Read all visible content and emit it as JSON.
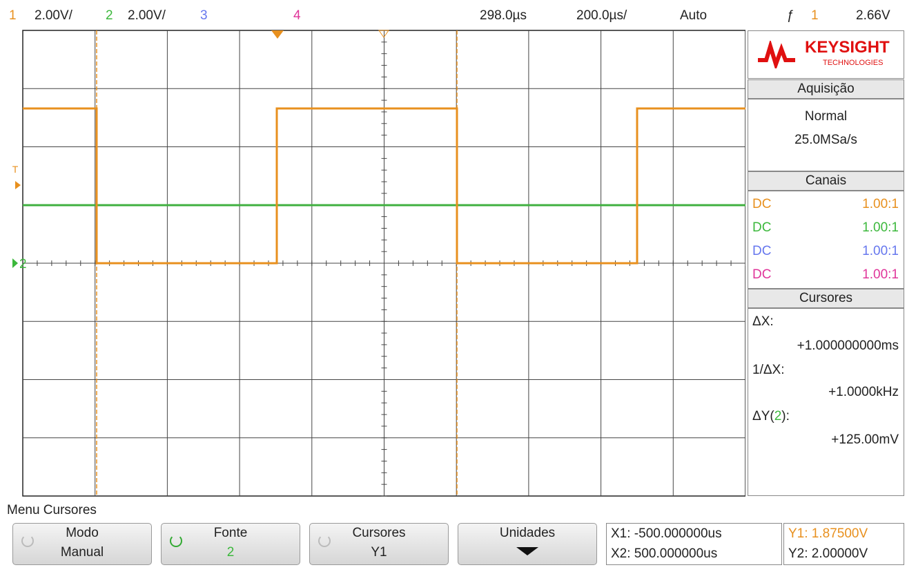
{
  "header": {
    "ch1_label": "1",
    "ch1_scale": "2.00V/",
    "ch2_label": "2",
    "ch2_scale": "2.00V/",
    "ch3_label": "3",
    "ch4_label": "4",
    "delay": "298.0µs",
    "timebase": "200.0µs/",
    "trigger_mode": "Auto",
    "trigger_channel": "1",
    "trigger_level": "2.66V"
  },
  "screen": {
    "trigger_marker": "T",
    "ground_marker": "2"
  },
  "panel": {
    "brand": "KEYSIGHT",
    "brand_sub": "TECHNOLOGIES",
    "acquisition": {
      "title": "Aquisição",
      "mode": "Normal",
      "rate": "25.0MSa/s"
    },
    "channels": {
      "title": "Canais",
      "rows": [
        [
          "DC",
          "1.00:1"
        ],
        [
          "DC",
          "1.00:1"
        ],
        [
          "DC",
          "1.00:1"
        ],
        [
          "DC",
          "1.00:1"
        ]
      ]
    },
    "cursors": {
      "title": "Cursores",
      "dx_label": "ΔX:",
      "dx_value": "+1.000000000ms",
      "inv_label": "1/ΔX:",
      "inv_value": "+1.0000kHz",
      "dy_open": "ΔY(",
      "dy_channel": "2",
      "dy_close": "):",
      "dy_value": "+125.00mV"
    }
  },
  "menu": {
    "title": "Menu Cursores",
    "buttons": [
      {
        "label": "Modo",
        "value": "Manual"
      },
      {
        "label": "Fonte",
        "value": "2"
      },
      {
        "label": "Cursores",
        "value": "Y1"
      },
      {
        "label": "Unidades"
      }
    ],
    "readouts": {
      "x1": "X1: -500.000000us",
      "x2": "X2: 500.000000us",
      "y1": "Y1: 1.87500V",
      "y2": "Y2: 2.00000V"
    }
  }
}
